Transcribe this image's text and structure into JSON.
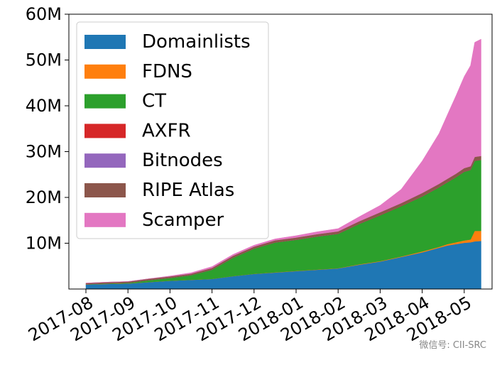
{
  "chart_data": {
    "type": "area",
    "stacked": true,
    "title": "",
    "xlabel": "",
    "ylabel": "",
    "x_ticks": [
      "2017-08",
      "2017-09",
      "2017-10",
      "2017-11",
      "2017-12",
      "2018-01",
      "2018-02",
      "2018-03",
      "2018-04",
      "2018-05"
    ],
    "y_ticks": [
      "10M",
      "20M",
      "30M",
      "40M",
      "50M",
      "60M"
    ],
    "y_tick_values": [
      10,
      20,
      30,
      40,
      50,
      60
    ],
    "ylim": [
      0,
      60
    ],
    "y_unit": "millions",
    "x": [
      0,
      0.5,
      1,
      1.5,
      2,
      2.5,
      3,
      3.5,
      4,
      4.5,
      5,
      5.5,
      6,
      6.5,
      7,
      7.5,
      8,
      8.4,
      8.6,
      8.8,
      9,
      9.15,
      9.25,
      9.4
    ],
    "legend_position": "upper-left",
    "grid": false,
    "series": [
      {
        "name": "Domainlists",
        "color": "#1f77b4",
        "values": [
          1.0,
          1.1,
          1.2,
          1.5,
          1.8,
          2.0,
          2.2,
          2.8,
          3.3,
          3.6,
          3.9,
          4.2,
          4.5,
          5.3,
          6.0,
          7.0,
          8.0,
          9.0,
          9.5,
          9.8,
          10.1,
          10.2,
          10.4,
          10.5
        ]
      },
      {
        "name": "FDNS",
        "color": "#ff7f0e",
        "values": [
          0.02,
          0.02,
          0.02,
          0.02,
          0.02,
          0.02,
          0.02,
          0.02,
          0.02,
          0.05,
          0.05,
          0.05,
          0.05,
          0.1,
          0.1,
          0.1,
          0.2,
          0.2,
          0.3,
          0.4,
          0.5,
          0.6,
          2.3,
          2.2
        ]
      },
      {
        "name": "CT",
        "color": "#2ca02c",
        "values": [
          0.05,
          0.1,
          0.15,
          0.4,
          0.6,
          1.0,
          2.0,
          4.0,
          5.5,
          6.5,
          6.8,
          7.2,
          7.5,
          8.8,
          10.0,
          11.0,
          12.0,
          13.0,
          13.5,
          14.2,
          15.0,
          15.2,
          15.3,
          15.5
        ]
      },
      {
        "name": "AXFR",
        "color": "#d62728",
        "values": [
          0.02,
          0.02,
          0.02,
          0.02,
          0.02,
          0.02,
          0.02,
          0.02,
          0.03,
          0.03,
          0.03,
          0.03,
          0.03,
          0.03,
          0.05,
          0.05,
          0.05,
          0.05,
          0.05,
          0.05,
          0.05,
          0.05,
          0.05,
          0.05
        ]
      },
      {
        "name": "Bitnodes",
        "color": "#9467bd",
        "values": [
          0.01,
          0.01,
          0.01,
          0.01,
          0.01,
          0.01,
          0.01,
          0.01,
          0.01,
          0.01,
          0.01,
          0.01,
          0.01,
          0.01,
          0.01,
          0.01,
          0.01,
          0.01,
          0.01,
          0.01,
          0.01,
          0.01,
          0.01,
          0.01
        ]
      },
      {
        "name": "RIPE Atlas",
        "color": "#8c564b",
        "values": [
          0.2,
          0.25,
          0.25,
          0.3,
          0.3,
          0.3,
          0.35,
          0.4,
          0.4,
          0.45,
          0.45,
          0.5,
          0.5,
          0.55,
          0.6,
          0.6,
          0.7,
          0.7,
          0.7,
          0.7,
          0.75,
          0.75,
          0.8,
          0.8
        ]
      },
      {
        "name": "Scamper",
        "color": "#e377c2",
        "values": [
          0.0,
          0.0,
          0.0,
          0.0,
          0.1,
          0.2,
          0.3,
          0.3,
          0.3,
          0.3,
          0.4,
          0.5,
          0.6,
          1.0,
          1.5,
          3.0,
          7.0,
          11.0,
          14.0,
          17.0,
          20.0,
          22.0,
          25.0,
          25.5
        ]
      }
    ]
  },
  "watermark": {
    "text": "微信号: CII-SRC"
  }
}
